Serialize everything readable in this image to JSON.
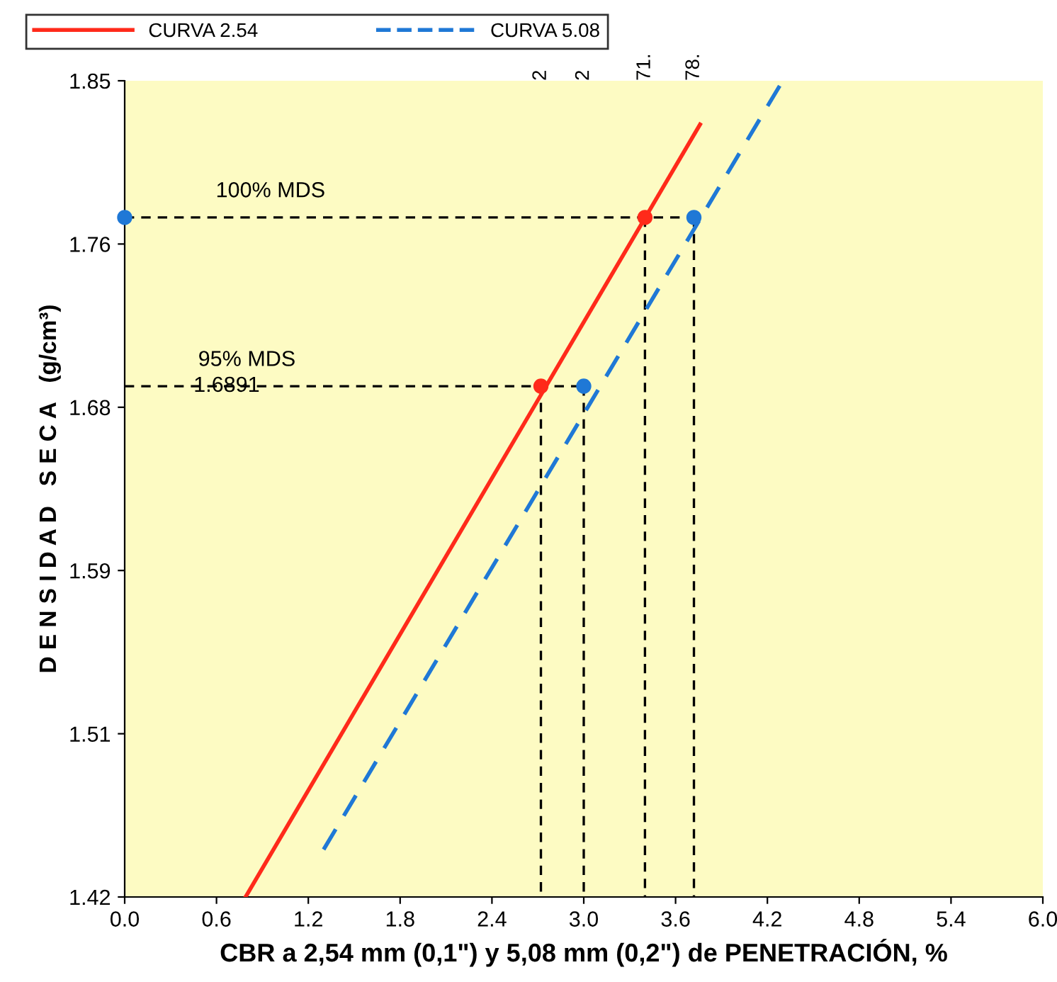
{
  "chart_data": {
    "type": "line",
    "xlabel": "CBR a 2,54 mm (0,1\") y 5,08 mm (0,2\") de PENETRACIÓN, %",
    "ylabel": "D E N S I D A D   S E C A   (g/cm³)",
    "xlim": [
      0,
      6
    ],
    "xticks": [
      {
        "value": 0,
        "label": "0.0"
      },
      {
        "value": 0.6,
        "label": "0.6"
      },
      {
        "value": 1.2,
        "label": "1.2"
      },
      {
        "value": 1.8,
        "label": "1.8"
      },
      {
        "value": 2.4,
        "label": "2.4"
      },
      {
        "value": 3.0,
        "label": "3.0"
      },
      {
        "value": 3.6,
        "label": "3.6"
      },
      {
        "value": 4.2,
        "label": "4.2"
      },
      {
        "value": 4.8,
        "label": "4.8"
      },
      {
        "value": 5.4,
        "label": "5.4"
      },
      {
        "value": 6.0,
        "label": "6.0"
      }
    ],
    "ylim": [
      1.42,
      1.85
    ],
    "yticks": [
      {
        "value": 1.42,
        "label": "1.42"
      },
      {
        "value": 1.506,
        "label": "1.51"
      },
      {
        "value": 1.592,
        "label": "1.59"
      },
      {
        "value": 1.678,
        "label": "1.68"
      },
      {
        "value": 1.764,
        "label": "1.76"
      },
      {
        "value": 1.85,
        "label": "1.85"
      }
    ],
    "grid": false,
    "legend": "top",
    "series": [
      {
        "name": "CURVA 2.54",
        "color": "#ff2a1a",
        "line_style": "solid",
        "x": [
          0.79,
          3.76
        ],
        "values": [
          1.42,
          1.827
        ]
      },
      {
        "name": "CURVA 5.08",
        "color": "#1f78d6",
        "line_style": "dashed",
        "x": [
          1.3,
          4.3
        ],
        "values": [
          1.445,
          1.85
        ]
      },
      {
        "type": "line",
        "color": "#000000",
        "line_style": "dashed",
        "x": [
          0,
          3.72
        ],
        "values": [
          1.778,
          1.778
        ]
      },
      {
        "type": "line",
        "color": "#000000",
        "line_style": "dashed",
        "x": [
          0,
          3.0
        ],
        "values": [
          1.6891,
          1.6891
        ]
      },
      {
        "type": "line",
        "color": "#000000",
        "line_style": "dashed",
        "x": [
          2.72,
          2.72
        ],
        "values": [
          1.6891,
          1.42
        ]
      },
      {
        "type": "line",
        "color": "#000000",
        "line_style": "dashed",
        "x": [
          3.0,
          3.0
        ],
        "values": [
          1.6891,
          1.42
        ]
      },
      {
        "type": "line",
        "color": "#000000",
        "line_style": "dashed",
        "x": [
          3.4,
          3.4
        ],
        "values": [
          1.778,
          1.42
        ]
      },
      {
        "type": "line",
        "color": "#000000",
        "line_style": "dashed",
        "x": [
          3.72,
          3.72
        ],
        "values": [
          1.778,
          1.42
        ]
      },
      {
        "type": "scatter",
        "color": "#ff2a1a",
        "marker": "circle",
        "x": [
          2.72,
          3.4
        ],
        "values": [
          1.6891,
          1.778
        ]
      },
      {
        "type": "scatter",
        "color": "#1f78d6",
        "marker": "circle",
        "x": [
          0,
          3.0,
          3.72
        ],
        "values": [
          1.778,
          1.6891,
          1.778
        ]
      }
    ],
    "annotations": [
      "100% MDS",
      "95% MDS",
      "1.6891",
      "2",
      "2",
      "71.",
      "78."
    ]
  }
}
